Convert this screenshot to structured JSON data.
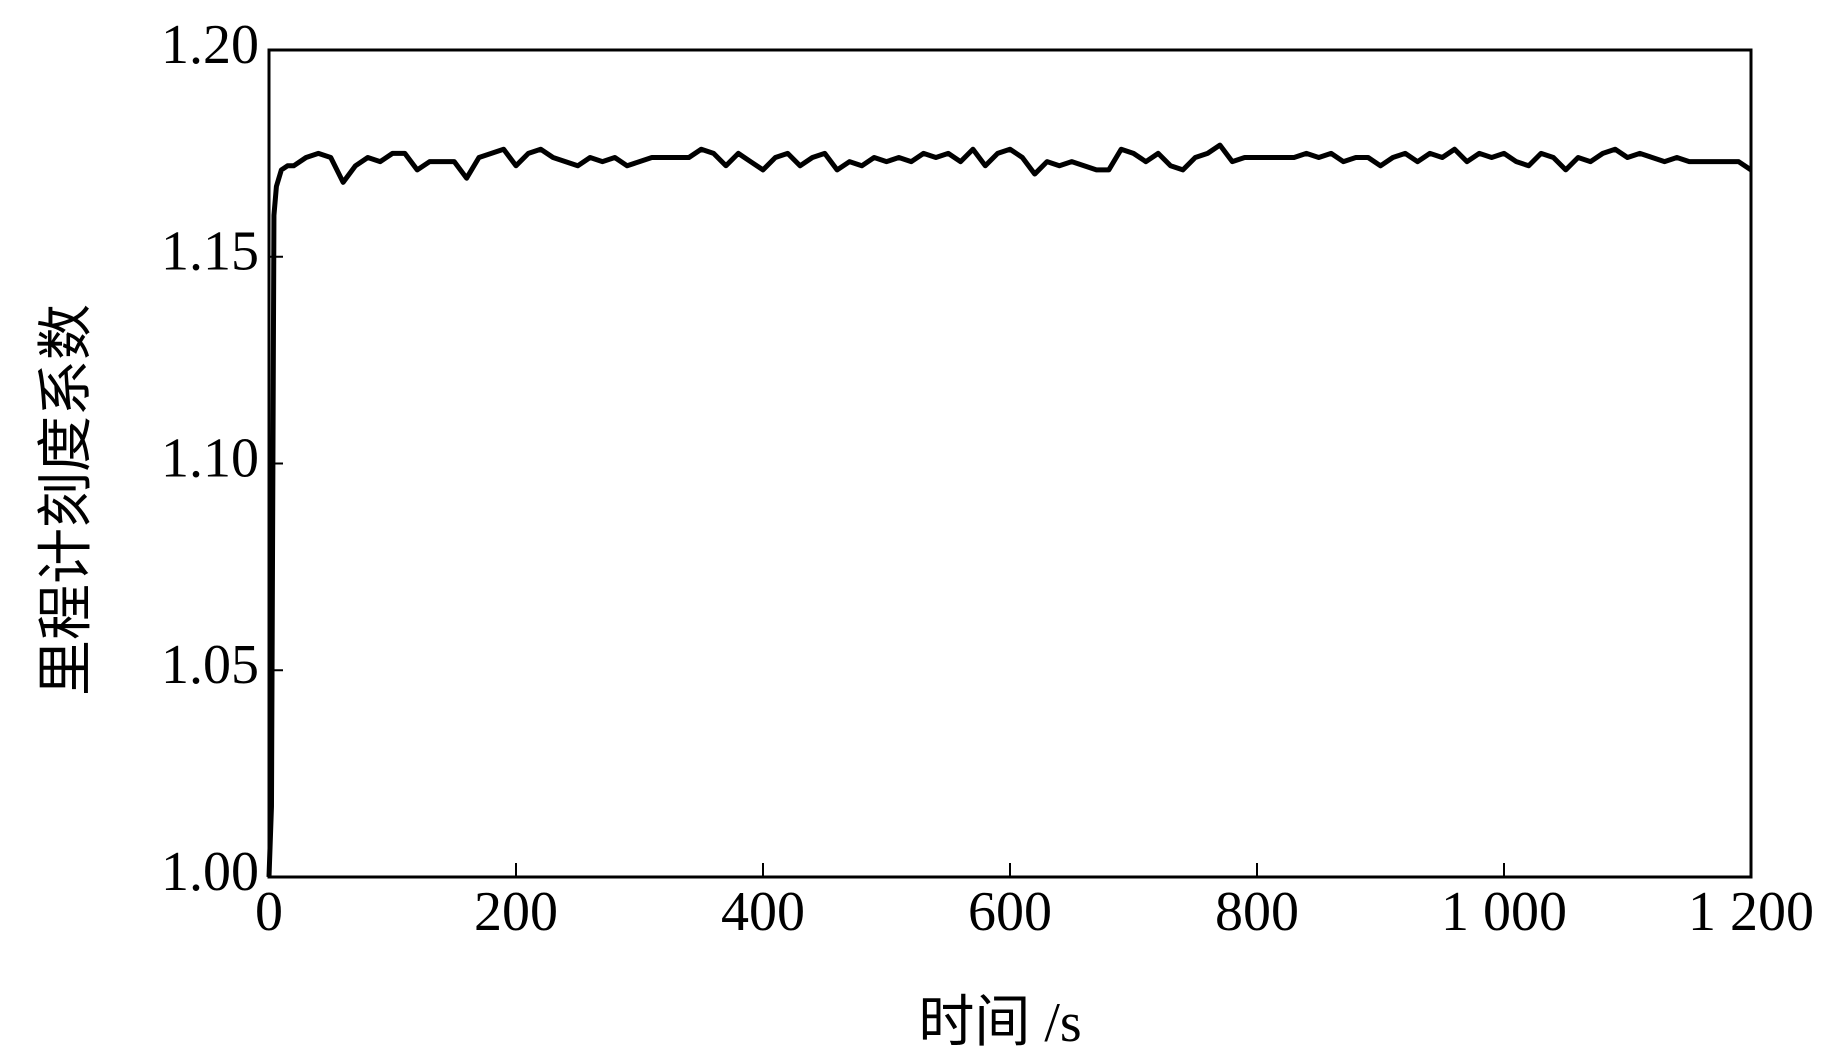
{
  "chart_data": {
    "type": "line",
    "xlabel": "时间 /s",
    "ylabel": "里程计刻度系数",
    "xlim": [
      0,
      1200
    ],
    "ylim": [
      1.0,
      1.2
    ],
    "xticks": [
      0,
      200,
      400,
      600,
      800,
      {
        "value": 1000,
        "label": "1 000"
      },
      {
        "value": 1200,
        "label": "1 200"
      }
    ],
    "yticks": [
      {
        "value": 1.0,
        "label": "1.00"
      },
      1.05,
      {
        "value": 1.1,
        "label": "1.10"
      },
      1.15,
      {
        "value": 1.2,
        "label": "1.20"
      }
    ],
    "series": [
      {
        "color": "#000000",
        "x": [
          0,
          2,
          4,
          6,
          10,
          15,
          20,
          30,
          40,
          50,
          60,
          70,
          80,
          90,
          100,
          110,
          120,
          130,
          140,
          150,
          160,
          170,
          180,
          190,
          200,
          210,
          220,
          230,
          240,
          250,
          260,
          270,
          280,
          290,
          300,
          310,
          320,
          330,
          340,
          350,
          360,
          370,
          380,
          390,
          400,
          410,
          420,
          430,
          440,
          450,
          460,
          470,
          480,
          490,
          500,
          510,
          520,
          530,
          540,
          550,
          560,
          570,
          580,
          590,
          600,
          610,
          620,
          630,
          640,
          650,
          660,
          670,
          680,
          690,
          700,
          710,
          720,
          730,
          740,
          750,
          760,
          770,
          780,
          790,
          800,
          810,
          820,
          830,
          840,
          850,
          860,
          870,
          880,
          890,
          900,
          910,
          920,
          930,
          940,
          950,
          960,
          970,
          980,
          990,
          1000,
          1010,
          1020,
          1030,
          1040,
          1050,
          1060,
          1070,
          1080,
          1090,
          1100,
          1110,
          1120,
          1130,
          1140,
          1150,
          1160,
          1170,
          1180,
          1190,
          1200
        ],
        "values": [
          1.0,
          1.017,
          1.16,
          1.167,
          1.171,
          1.172,
          1.172,
          1.174,
          1.175,
          1.174,
          1.168,
          1.172,
          1.174,
          1.173,
          1.175,
          1.175,
          1.171,
          1.173,
          1.173,
          1.173,
          1.169,
          1.174,
          1.175,
          1.176,
          1.172,
          1.175,
          1.176,
          1.174,
          1.173,
          1.172,
          1.174,
          1.173,
          1.174,
          1.172,
          1.173,
          1.174,
          1.174,
          1.174,
          1.174,
          1.176,
          1.175,
          1.172,
          1.175,
          1.173,
          1.171,
          1.174,
          1.175,
          1.172,
          1.174,
          1.175,
          1.171,
          1.173,
          1.172,
          1.174,
          1.173,
          1.174,
          1.173,
          1.175,
          1.174,
          1.175,
          1.173,
          1.176,
          1.172,
          1.175,
          1.176,
          1.174,
          1.17,
          1.173,
          1.172,
          1.173,
          1.172,
          1.171,
          1.171,
          1.176,
          1.175,
          1.173,
          1.175,
          1.172,
          1.171,
          1.174,
          1.175,
          1.177,
          1.173,
          1.174,
          1.174,
          1.174,
          1.174,
          1.174,
          1.175,
          1.174,
          1.175,
          1.173,
          1.174,
          1.174,
          1.172,
          1.174,
          1.175,
          1.173,
          1.175,
          1.174,
          1.176,
          1.173,
          1.175,
          1.174,
          1.175,
          1.173,
          1.172,
          1.175,
          1.174,
          1.171,
          1.174,
          1.173,
          1.175,
          1.176,
          1.174,
          1.175,
          1.174,
          1.173,
          1.174,
          1.173,
          1.173,
          1.173,
          1.173,
          1.173,
          1.171
        ]
      }
    ]
  }
}
